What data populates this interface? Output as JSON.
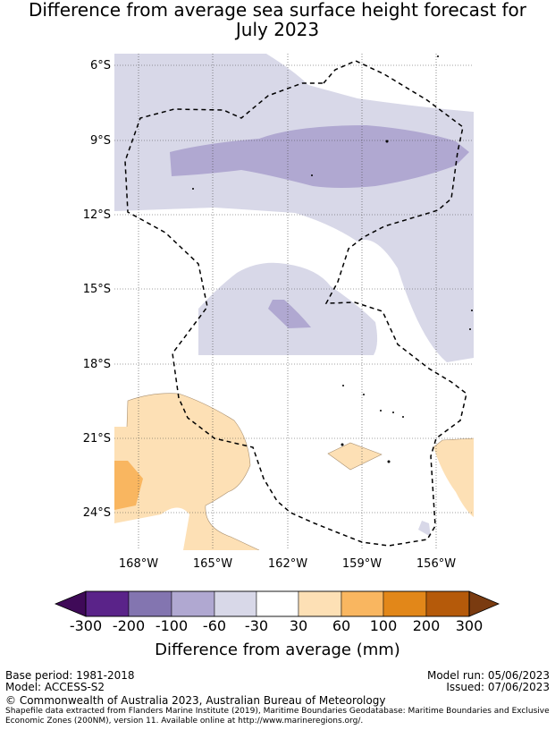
{
  "title_lines": [
    "Difference from average sea surface height forecast for",
    "July 2023"
  ],
  "lat_labels": [
    "6°S",
    "9°S",
    "12°S",
    "15°S",
    "18°S",
    "21°S",
    "24°S"
  ],
  "lon_labels": [
    "168°W",
    "165°W",
    "162°W",
    "159°W",
    "156°W"
  ],
  "colorbar": {
    "title": "Difference from average (mm)",
    "ticks": [
      "-300",
      "-200",
      "-100",
      "-60",
      "-30",
      "30",
      "60",
      "100",
      "200",
      "300"
    ],
    "colors": [
      "#3f0a58",
      "#5a2389",
      "#8375b0",
      "#b0a8d1",
      "#d8d8e8",
      "#ffffff",
      "#fde0b5",
      "#f9b660",
      "#e28719",
      "#b55a0a",
      "#7a3b10"
    ]
  },
  "footer": {
    "base_period": "Base period: 1981-2018",
    "model": "Model: ACCESS-S2",
    "model_run": "Model run: 05/06/2023",
    "issued": "Issued: 07/06/2023",
    "copyright": "© Commonwealth of Australia 2023, Australian Bureau of Meteorology",
    "shapefile": "Shapefile data extracted from Flanders Marine Institute (2019), Maritime Boundaries Geodatabase: Maritime Boundaries and Exclusive Economic Zones (200NM), version 11. Available online at http://www.marineregions.org/."
  },
  "map_data": {
    "lat_range": [
      -25.5,
      -5.5
    ],
    "lon_range": [
      -169.0,
      -154.5
    ],
    "lat_ticks": [
      -6,
      -9,
      -12,
      -15,
      -18,
      -21,
      -24
    ],
    "lon_ticks": [
      -168,
      -165,
      -162,
      -159,
      -156
    ],
    "regions": [
      {
        "category": "-60 to -30",
        "color": "#d8d8e8"
      },
      {
        "category": "-100 to -60",
        "color": "#b0a8d1"
      },
      {
        "category": "30 to 60",
        "color": "#fde0b5"
      },
      {
        "category": "60 to 100",
        "color": "#f9b660"
      }
    ],
    "eez_boundary": "dashed"
  }
}
